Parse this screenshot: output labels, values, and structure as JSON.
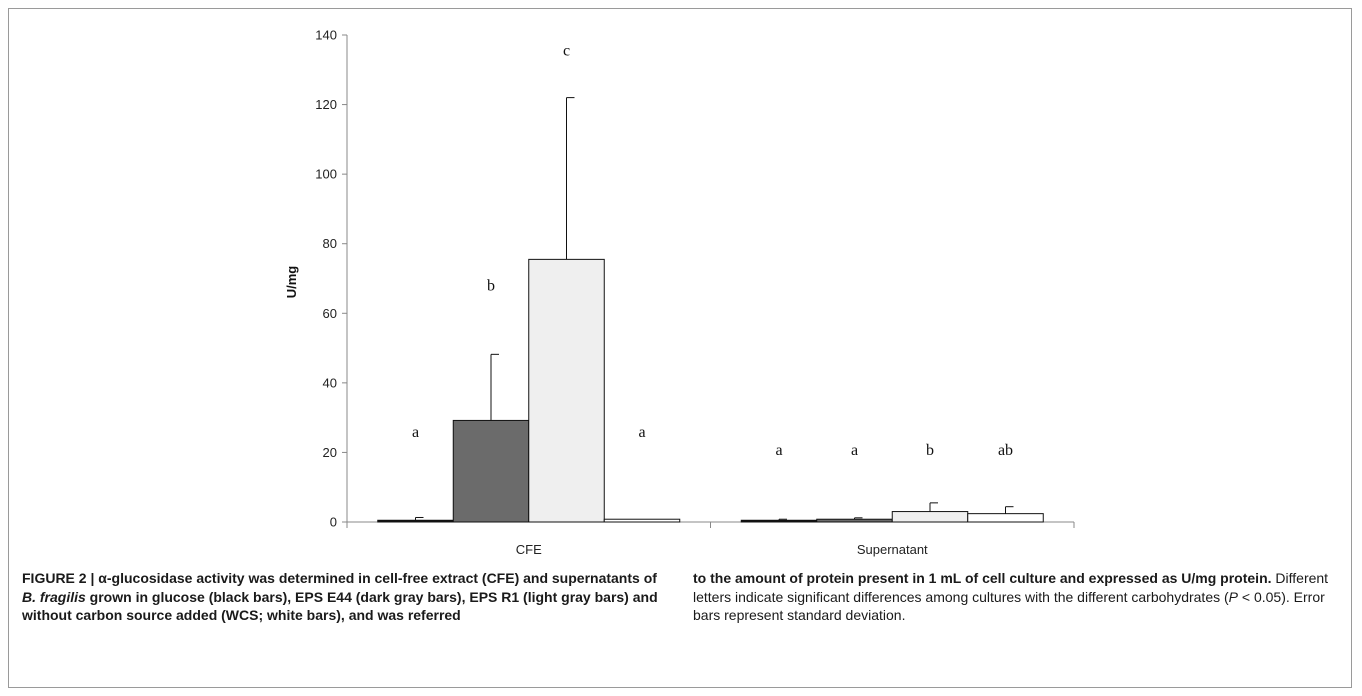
{
  "chart_data": {
    "type": "bar",
    "categories": [
      "CFE",
      "Supernatant"
    ],
    "ylabel": "U/mg",
    "ylim": [
      0,
      140
    ],
    "yticks": [
      0,
      20,
      40,
      60,
      80,
      100,
      120,
      140
    ],
    "grid": false,
    "series": [
      {
        "color": "#111111",
        "values": [
          0.5,
          0.5
        ],
        "errors": [
          0.8,
          0.3
        ],
        "letters": [
          "a",
          "a"
        ]
      },
      {
        "color": "#6b6b6b",
        "values": [
          29.2,
          0.8
        ],
        "errors": [
          19.0,
          0.4
        ],
        "letters": [
          "b",
          "a"
        ]
      },
      {
        "color": "#efefef",
        "values": [
          75.5,
          3.0
        ],
        "errors": [
          46.5,
          2.5
        ],
        "letters": [
          "c",
          "b"
        ]
      },
      {
        "color": "#ffffff",
        "values": [
          0.8,
          2.4
        ],
        "errors": [
          0.0,
          2.0
        ],
        "letters": [
          "a",
          "ab"
        ]
      }
    ]
  },
  "caption": {
    "label": "FIGURE 2 | ",
    "bold_part_1": "α-glucosidase activity was determined in cell-free extract (CFE) and supernatants of ",
    "bold_italic_species": "B. fragilis",
    "bold_part_2": " grown in glucose (black bars), EPS E44 (dark gray bars), EPS R1 (light gray bars) and without carbon source added (WCS; white bars), and was referred",
    "bold_part_3": "to the amount of protein present in 1 mL of cell culture and expressed as U/mg protein.",
    "normal_part_1": " Different letters indicate significant differences among cultures with the different carbohydrates (",
    "p_italic": "P",
    "normal_part_2": " < 0.05). Error bars represent standard deviation."
  }
}
